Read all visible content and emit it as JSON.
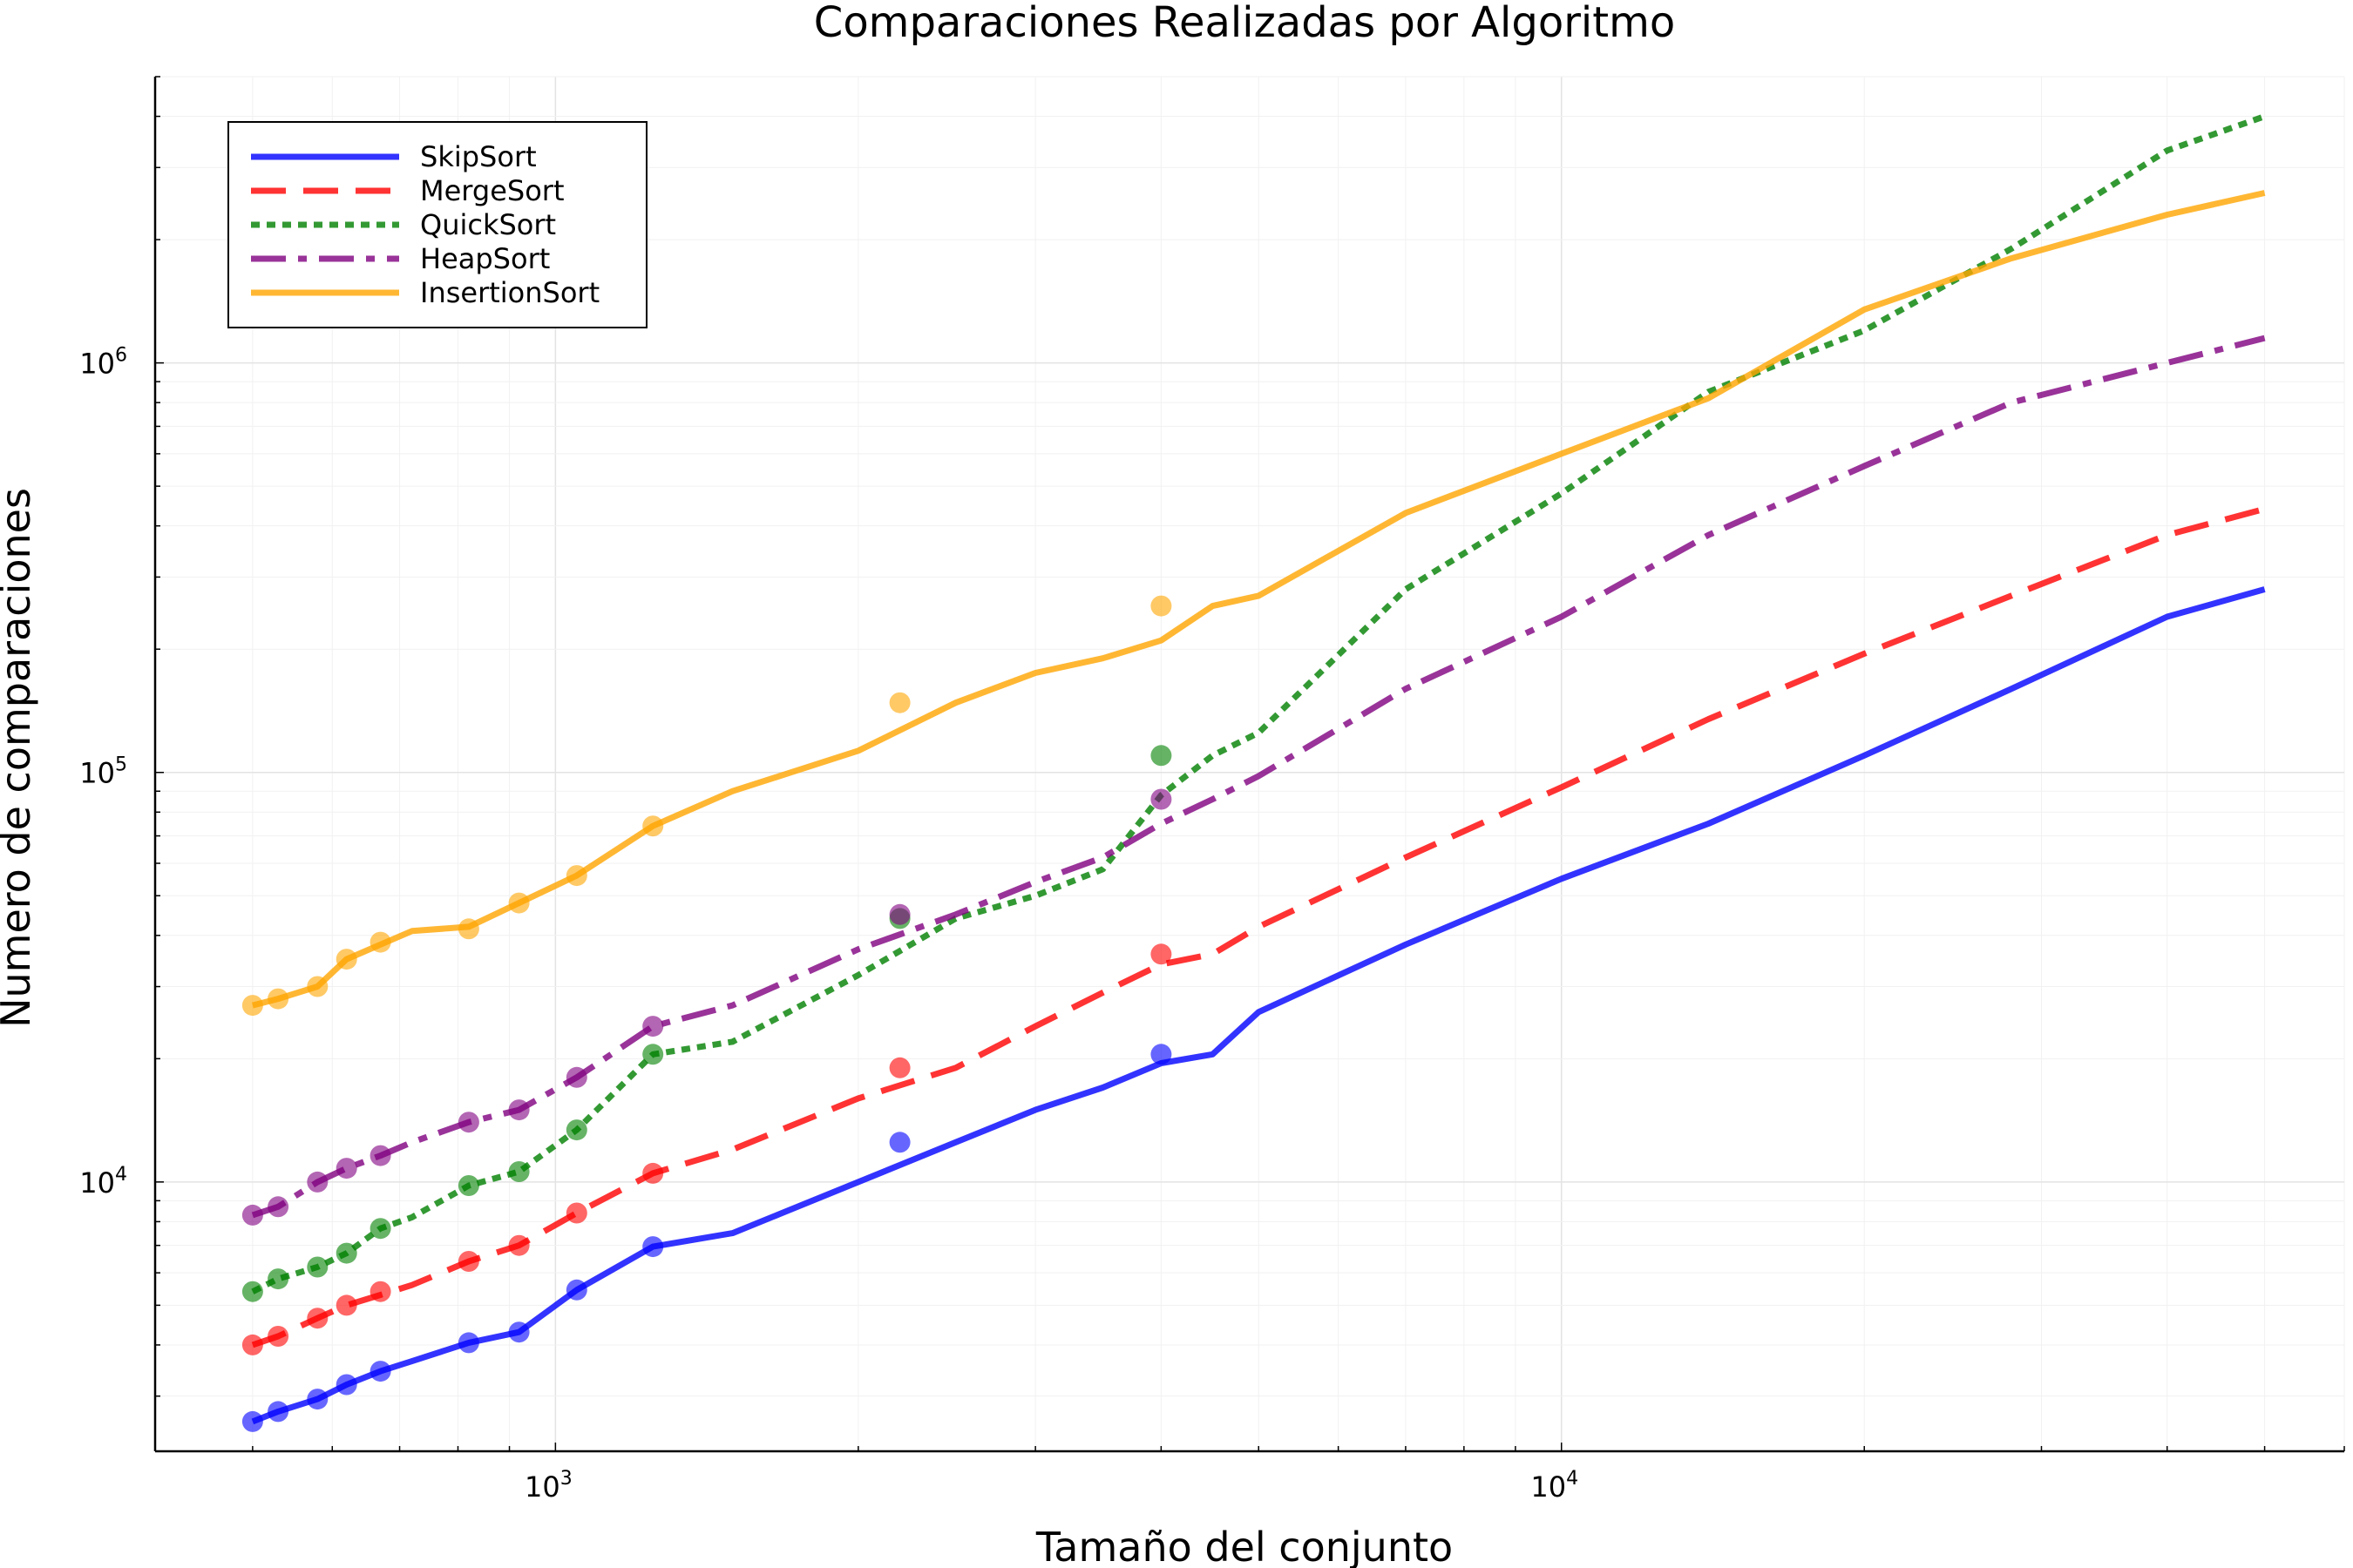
{
  "chart_data": {
    "type": "line",
    "title": "Comparaciones Realizadas por Algoritmo",
    "xlabel": "Tamaño del conjunto",
    "ylabel": "Numero de comparaciones",
    "xscale": "log",
    "yscale": "log",
    "xlim": [
      400,
      60000
    ],
    "ylim": [
      2200,
      5000000
    ],
    "grid": true,
    "legend_position": "top-left",
    "x_ticks": [
      {
        "base": "10",
        "exp": "3",
        "value": 1000
      },
      {
        "base": "10",
        "exp": "4",
        "value": 10000
      }
    ],
    "y_ticks": [
      {
        "base": "10",
        "exp": "4",
        "value": 10000
      },
      {
        "base": "10",
        "exp": "5",
        "value": 100000
      },
      {
        "base": "10",
        "exp": "6",
        "value": 1000000
      }
    ],
    "x": [
      500,
      530,
      580,
      620,
      670,
      720,
      820,
      920,
      1050,
      1250,
      1500,
      2000,
      2500,
      3000,
      3500,
      4000,
      4500,
      5000,
      7000,
      10000,
      14000,
      20000,
      28000,
      40000,
      50000
    ],
    "series": [
      {
        "name": "SkipSort",
        "color": "#0000ff",
        "dash": "solid",
        "values": [
          2600,
          2750,
          2950,
          3200,
          3450,
          3650,
          4050,
          4300,
          5450,
          6950,
          7500,
          10000,
          12500,
          15000,
          17000,
          19500,
          20500,
          26000,
          38000,
          55000,
          75000,
          110000,
          160000,
          240000,
          280000
        ]
      },
      {
        "name": "MergeSort",
        "color": "#ff0000",
        "dash": "dash",
        "values": [
          4000,
          4200,
          4650,
          5000,
          5300,
          5600,
          6400,
          7000,
          8400,
          10500,
          12000,
          16000,
          19000,
          24000,
          29000,
          34000,
          36000,
          42000,
          62000,
          92000,
          135000,
          195000,
          270000,
          380000,
          440000
        ]
      },
      {
        "name": "QuickSort",
        "color": "#008000",
        "dash": "dot",
        "values": [
          5400,
          5800,
          6200,
          6700,
          7700,
          8200,
          9800,
          10600,
          13400,
          20500,
          22000,
          32000,
          44000,
          50000,
          58000,
          88000,
          110000,
          125000,
          280000,
          480000,
          850000,
          1200000,
          1900000,
          3300000,
          4000000
        ]
      },
      {
        "name": "HeapSort",
        "color": "#800080",
        "dash": "dashdot",
        "values": [
          8300,
          8700,
          10000,
          10800,
          11600,
          12500,
          14000,
          15000,
          18000,
          24000,
          27000,
          37000,
          45000,
          54000,
          62000,
          75000,
          86000,
          98000,
          160000,
          240000,
          380000,
          560000,
          800000,
          1000000,
          1150000
        ]
      },
      {
        "name": "InsertionSort",
        "color": "#ffa500",
        "dash": "solid",
        "values": [
          27000,
          28000,
          30000,
          35000,
          38000,
          41000,
          42000,
          48000,
          56000,
          74000,
          90000,
          113000,
          148000,
          175000,
          190000,
          210000,
          255000,
          270000,
          430000,
          600000,
          820000,
          1350000,
          1800000,
          2300000,
          2600000
        ]
      }
    ],
    "markers": {
      "x": [
        500,
        530,
        580,
        620,
        670,
        820,
        920,
        1050,
        1250,
        2200,
        4000
      ],
      "series_values": [
        [
          2600,
          2750,
          2950,
          3200,
          3450,
          4050,
          4300,
          5450,
          6950,
          12500,
          20500
        ],
        [
          4000,
          4200,
          4650,
          5000,
          5400,
          6400,
          7000,
          8400,
          10500,
          19000,
          36000
        ],
        [
          5400,
          5800,
          6200,
          6700,
          7700,
          9800,
          10600,
          13400,
          20500,
          44000,
          110000
        ],
        [
          8300,
          8700,
          10000,
          10800,
          11600,
          14000,
          15000,
          18000,
          24000,
          45000,
          86000
        ],
        [
          27000,
          28000,
          30000,
          35000,
          38500,
          41500,
          48000,
          56000,
          74000,
          148000,
          255000
        ]
      ]
    }
  }
}
